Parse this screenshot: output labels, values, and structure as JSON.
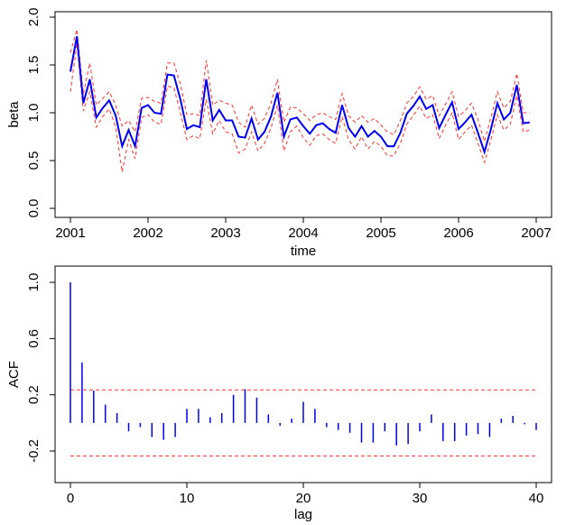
{
  "chart_data": [
    {
      "type": "line",
      "xlabel": "time",
      "ylabel": "beta",
      "xlim": [
        2001,
        2007
      ],
      "ylim": [
        0.0,
        2.0
      ],
      "xticks": [
        2001,
        2002,
        2003,
        2004,
        2005,
        2006,
        2007
      ],
      "yticks": [
        "0.0",
        "0.5",
        "1.0",
        "1.5",
        "2.0"
      ],
      "x_start": 2001,
      "x_step": 0.0833333,
      "series": [
        {
          "role": "estimate",
          "color": "#0000ee",
          "style": "solid",
          "values": [
            1.43,
            1.8,
            1.1,
            1.35,
            0.95,
            1.05,
            1.13,
            0.97,
            0.65,
            0.82,
            0.65,
            1.05,
            1.08,
            1.0,
            0.99,
            1.4,
            1.39,
            1.14,
            0.83,
            0.87,
            0.85,
            1.35,
            0.92,
            1.03,
            0.92,
            0.92,
            0.75,
            0.74,
            0.94,
            0.72,
            0.8,
            0.96,
            1.21,
            0.75,
            0.93,
            0.95,
            0.86,
            0.78,
            0.87,
            0.89,
            0.83,
            0.79,
            1.08,
            0.84,
            0.75,
            0.86,
            0.75,
            0.81,
            0.75,
            0.65,
            0.65,
            0.79,
            0.99,
            1.07,
            1.17,
            1.04,
            1.08,
            0.84,
            0.98,
            1.11,
            0.83,
            0.9,
            0.98,
            0.79,
            0.59,
            0.83,
            1.1,
            0.93,
            1.0,
            1.29,
            0.89,
            0.9
          ]
        },
        {
          "role": "upper-band",
          "color": "#ff3333",
          "style": "dashed",
          "values": [
            1.63,
            1.87,
            1.2,
            1.52,
            1.08,
            1.15,
            1.22,
            1.08,
            0.86,
            0.92,
            0.8,
            1.15,
            1.16,
            1.12,
            1.1,
            1.52,
            1.52,
            1.3,
            0.98,
            0.99,
            0.97,
            1.55,
            1.08,
            1.13,
            1.1,
            1.08,
            0.9,
            0.85,
            1.08,
            0.88,
            0.94,
            1.1,
            1.35,
            0.9,
            1.06,
            1.05,
            0.99,
            0.92,
            0.98,
            1.0,
            0.96,
            0.93,
            1.2,
            0.97,
            0.9,
            0.97,
            0.9,
            0.94,
            0.87,
            0.8,
            0.77,
            0.92,
            1.1,
            1.17,
            1.27,
            1.14,
            1.18,
            0.97,
            1.09,
            1.22,
            0.96,
            1.02,
            1.1,
            0.93,
            0.7,
            0.95,
            1.22,
            1.05,
            1.12,
            1.41,
            1.0,
            1.0
          ]
        },
        {
          "role": "lower-band",
          "color": "#ff3333",
          "style": "dashed",
          "values": [
            1.22,
            1.72,
            1.02,
            1.22,
            0.85,
            0.96,
            1.04,
            0.85,
            0.38,
            0.72,
            0.52,
            0.95,
            0.98,
            0.9,
            0.88,
            1.28,
            1.26,
            1.0,
            0.72,
            0.76,
            0.73,
            1.14,
            0.78,
            0.92,
            0.8,
            0.78,
            0.58,
            0.62,
            0.8,
            0.6,
            0.68,
            0.84,
            1.08,
            0.6,
            0.8,
            0.86,
            0.74,
            0.66,
            0.76,
            0.78,
            0.72,
            0.68,
            0.96,
            0.72,
            0.62,
            0.75,
            0.62,
            0.7,
            0.65,
            0.55,
            0.55,
            0.68,
            0.88,
            0.97,
            1.07,
            0.94,
            0.98,
            0.73,
            0.87,
            1.0,
            0.72,
            0.8,
            0.87,
            0.68,
            0.48,
            0.72,
            0.98,
            0.82,
            0.88,
            1.18,
            0.8,
            0.82
          ]
        }
      ],
      "grid": false
    },
    {
      "type": "bar",
      "subtype": "acf",
      "xlabel": "lag",
      "ylabel": "ACF",
      "xlim": [
        0,
        40
      ],
      "ylim": [
        -0.25,
        1.0
      ],
      "xticks": [
        0,
        10,
        20,
        30,
        40
      ],
      "yticks": [
        "-0.2",
        "0.2",
        "0.6",
        "1.0"
      ],
      "lags": [
        0,
        1,
        2,
        3,
        4,
        5,
        6,
        7,
        8,
        9,
        10,
        11,
        12,
        13,
        14,
        15,
        16,
        17,
        18,
        19,
        20,
        21,
        22,
        23,
        24,
        25,
        26,
        27,
        28,
        29,
        30,
        31,
        32,
        33,
        34,
        35,
        36,
        37,
        38,
        39,
        40
      ],
      "values": [
        1.0,
        0.43,
        0.23,
        0.13,
        0.07,
        -0.06,
        -0.03,
        -0.1,
        -0.12,
        -0.1,
        0.1,
        0.1,
        0.04,
        0.07,
        0.2,
        0.24,
        0.18,
        0.06,
        -0.02,
        0.03,
        0.15,
        0.1,
        -0.03,
        -0.05,
        -0.07,
        -0.14,
        -0.14,
        -0.06,
        -0.16,
        -0.15,
        -0.06,
        0.06,
        -0.13,
        -0.13,
        -0.09,
        -0.08,
        -0.1,
        0.03,
        0.05,
        -0.01,
        -0.05
      ],
      "confidence_bound": 0.235,
      "bar_color": "#0000ee",
      "bound_color": "#ff3333",
      "grid": false
    }
  ]
}
